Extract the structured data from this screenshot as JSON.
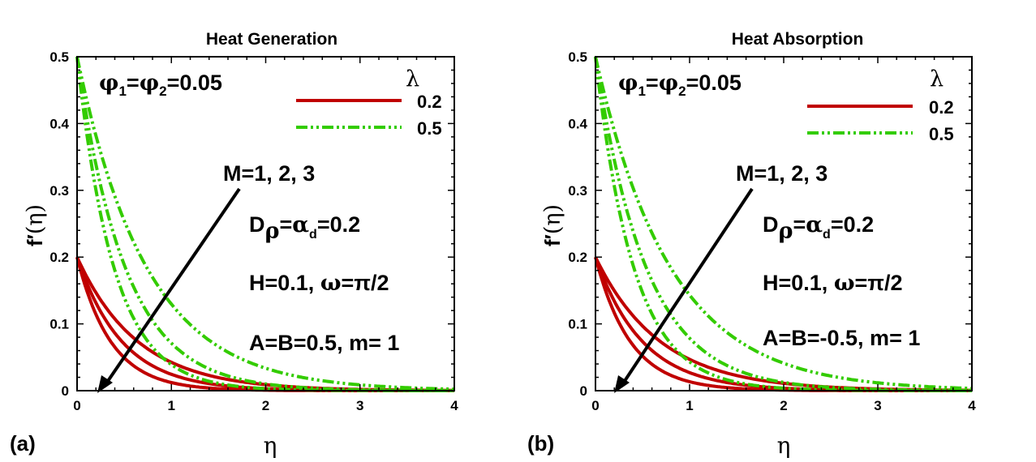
{
  "chart_data": [
    {
      "type": "line",
      "panel_label": "(a)",
      "title": "Heat Generation",
      "xlabel": "η",
      "ylabel": {
        "prefix": "f",
        "prime": "′",
        "paren": "(η)"
      },
      "xlim": [
        0,
        4
      ],
      "ylim": [
        0,
        0.5
      ],
      "xticks": [
        "0",
        "1",
        "2",
        "3",
        "4"
      ],
      "yticks": [
        "0",
        "0.1",
        "0.2",
        "0.3",
        "0.4",
        "0.5"
      ],
      "legend": {
        "title": "λ",
        "entries": [
          "0.2",
          "0.5"
        ]
      },
      "phi_label": {
        "a": "φ",
        "sub1": "1",
        "eq1": "=",
        "b": "φ",
        "sub2": "2",
        "eq2": "=0.05"
      },
      "arrow_label": "M=1, 2, 3",
      "params": {
        "d": "D",
        "d_sub": "ρ",
        "d_eq": "=",
        "alpha": "α",
        "alpha_sub": "d",
        "d_val": "=0.2",
        "h": "H=0.1, ",
        "omega": "ω",
        "omega_val": "=π/2",
        "ab": "A=B=0.5, m= 1"
      },
      "series": [
        {
          "name": "λ=0.2, M=1",
          "group": "0.2",
          "y0": 0.2,
          "k": 1.55
        },
        {
          "name": "λ=0.2, M=2",
          "group": "0.2",
          "y0": 0.2,
          "k": 2.1
        },
        {
          "name": "λ=0.2, M=3",
          "group": "0.2",
          "y0": 0.2,
          "k": 2.8
        },
        {
          "name": "λ=0.5, M=1",
          "group": "0.5",
          "y0": 0.5,
          "k": 1.35
        },
        {
          "name": "λ=0.5, M=2",
          "group": "0.5",
          "y0": 0.5,
          "k": 1.95
        },
        {
          "name": "λ=0.5, M=3",
          "group": "0.5",
          "y0": 0.5,
          "k": 2.55
        }
      ]
    },
    {
      "type": "line",
      "panel_label": "(b)",
      "title": "Heat Absorption",
      "xlabel": "η",
      "ylabel": {
        "prefix": "f",
        "prime": "′",
        "paren": "(η)"
      },
      "xlim": [
        0,
        4
      ],
      "ylim": [
        0,
        0.5
      ],
      "xticks": [
        "0",
        "1",
        "2",
        "3",
        "4"
      ],
      "yticks": [
        "0",
        "0.1",
        "0.2",
        "0.3",
        "0.4",
        "0.5"
      ],
      "legend": {
        "title": "λ",
        "entries": [
          "0.2",
          "0.5"
        ]
      },
      "phi_label": {
        "a": "φ",
        "sub1": "1",
        "eq1": "=",
        "b": "φ",
        "sub2": "2",
        "eq2": "=0.05"
      },
      "arrow_label": "M=1, 2, 3",
      "params": {
        "d": "D",
        "d_sub": "ρ",
        "d_eq": "=",
        "alpha": "α",
        "alpha_sub": "d",
        "d_val": "=0.2",
        "h": "H=0.1, ",
        "omega": "ω",
        "omega_val": "=π/2",
        "ab": "A=B=-0.5, m= 1"
      },
      "series": [
        {
          "name": "λ=0.2, M=1",
          "group": "0.2",
          "y0": 0.2,
          "k": 1.45
        },
        {
          "name": "λ=0.2, M=2",
          "group": "0.2",
          "y0": 0.2,
          "k": 2.0
        },
        {
          "name": "λ=0.2, M=3",
          "group": "0.2",
          "y0": 0.2,
          "k": 2.7
        },
        {
          "name": "λ=0.5, M=1",
          "group": "0.5",
          "y0": 0.5,
          "k": 1.25
        },
        {
          "name": "λ=0.5, M=2",
          "group": "0.5",
          "y0": 0.5,
          "k": 1.85
        },
        {
          "name": "λ=0.5, M=3",
          "group": "0.5",
          "y0": 0.5,
          "k": 2.45
        }
      ]
    }
  ],
  "colors": {
    "lambda_02": "#c00000",
    "lambda_05": "#33cc00",
    "axis": "#000000"
  }
}
